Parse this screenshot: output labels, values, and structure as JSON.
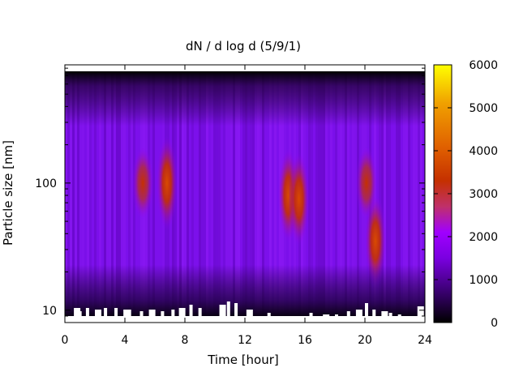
{
  "chart_data": {
    "type": "heatmap",
    "title": "dN / d log d (5/9/1)",
    "xlabel": "Time [hour]",
    "ylabel": "Particle size [nm]",
    "xlim": [
      0,
      24
    ],
    "ylim_nm": [
      8,
      850
    ],
    "y_scale": "log",
    "x_ticks": [
      "0",
      "4",
      "8",
      "12",
      "16",
      "20",
      "24"
    ],
    "y_ticks": [
      "10",
      "100"
    ],
    "colorbar": {
      "range": [
        0,
        6000
      ],
      "ticks": [
        "0",
        "1000",
        "2000",
        "3000",
        "4000",
        "5000",
        "6000"
      ],
      "palette": [
        "#000000",
        "#3a0070",
        "#7a00e0",
        "#a000ff",
        "#c0306a",
        "#c53000",
        "#e06000",
        "#f0a000",
        "#ffff00"
      ]
    },
    "hotspots": [
      {
        "time_hour": 5.2,
        "size_nm": 100,
        "peak": 2900
      },
      {
        "time_hour": 6.8,
        "size_nm": 100,
        "peak": 3600
      },
      {
        "time_hour": 14.9,
        "size_nm": 80,
        "peak": 3400
      },
      {
        "time_hour": 15.6,
        "size_nm": 75,
        "peak": 3300
      },
      {
        "time_hour": 20.7,
        "size_nm": 35,
        "peak": 3700
      },
      {
        "time_hour": 20.1,
        "size_nm": 100,
        "peak": 2600
      }
    ]
  }
}
